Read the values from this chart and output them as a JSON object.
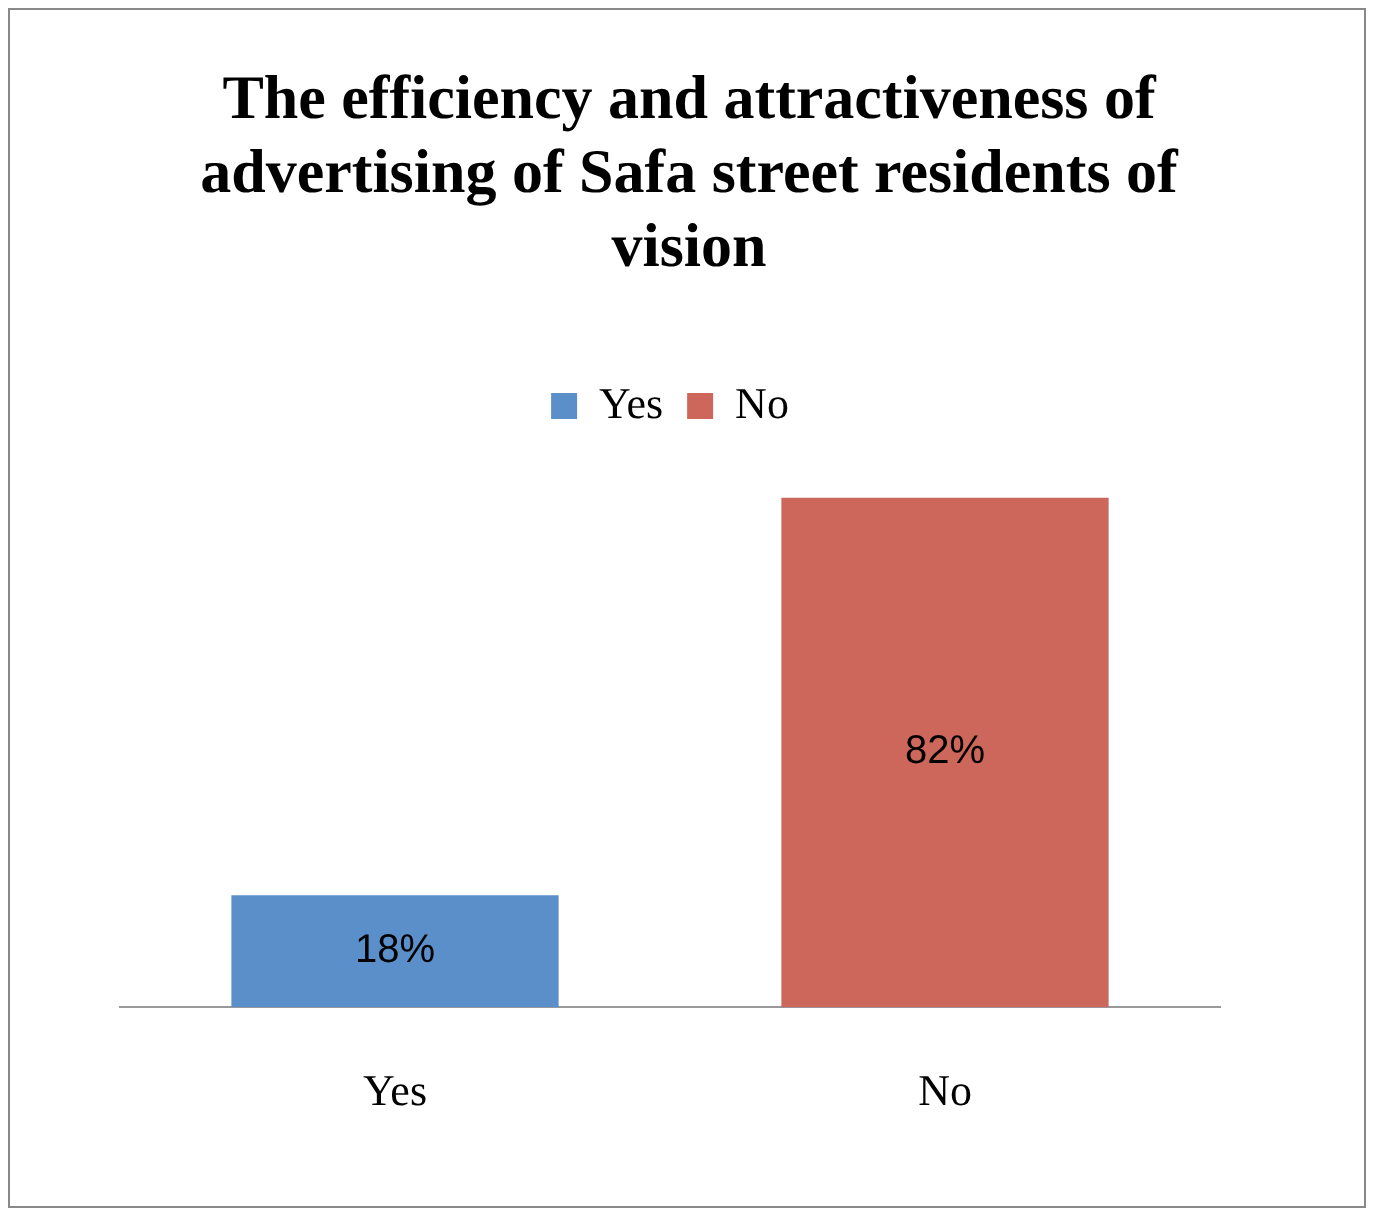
{
  "chart_data": {
    "type": "bar",
    "title": "The efficiency and attractiveness of advertising of Safa street residents of vision",
    "categories": [
      "Yes",
      "No"
    ],
    "series": [
      {
        "name": "Yes",
        "color": "#5b8fca",
        "values": [
          18,
          null
        ],
        "value_labels": [
          "18%",
          null
        ]
      },
      {
        "name": "No",
        "color": "#cd665b",
        "values": [
          null,
          82
        ],
        "value_labels": [
          null,
          "82%"
        ]
      }
    ],
    "legend": "top"
  }
}
